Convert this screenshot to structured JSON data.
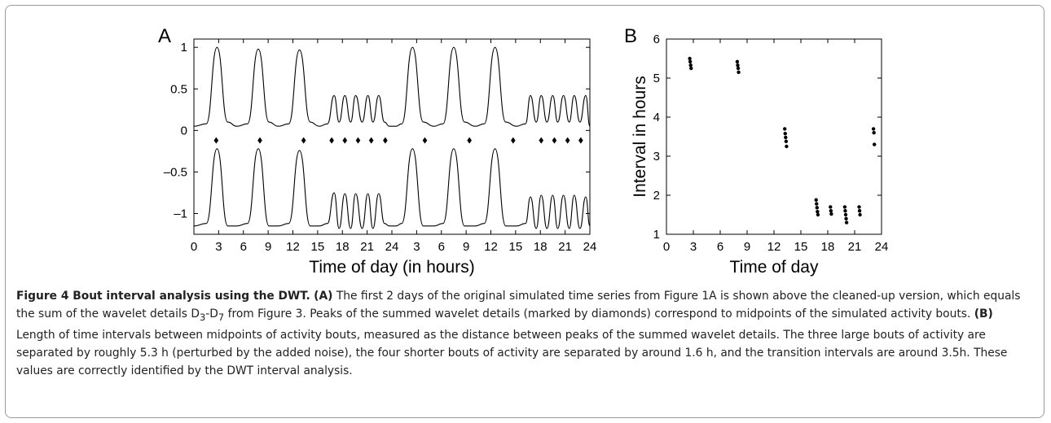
{
  "chart_data": [
    {
      "type": "line",
      "panel_label": "A",
      "xlabel": "Time of day (in hours)",
      "ylabel": "",
      "ylim": [
        -1.25,
        1.1
      ],
      "xlim": [
        0,
        48
      ],
      "x_tick_labels": [
        "0",
        "3",
        "6",
        "9",
        "12",
        "15",
        "18",
        "21",
        "24",
        "3",
        "6",
        "9",
        "12",
        "15",
        "18",
        "21",
        "24"
      ],
      "y_ticks": [
        1,
        0.5,
        0,
        -0.5,
        -1
      ],
      "y_tick_labels": [
        "1",
        "0.5",
        "0",
        "–0.5",
        "–1"
      ],
      "grid": false,
      "series": [
        {
          "role": "original simulated time series",
          "x": [
            0,
            1.5,
            2.8,
            4.1,
            5.2,
            6.5,
            7.8,
            9.1,
            10.2,
            11.5,
            12.8,
            14.1,
            15.2,
            16.2,
            17.0,
            17.6,
            18.3,
            19.0,
            19.6,
            20.4,
            21.1,
            21.7,
            22.4,
            23.1,
            23.7,
            24.5,
            25.2,
            26.5,
            27.8,
            29.1,
            30.2,
            31.5,
            32.8,
            34.1,
            35.2,
            36.5,
            37.8,
            39.1,
            40.2,
            40.8,
            41.5,
            42.1,
            42.8,
            43.5,
            44.1,
            44.8,
            45.5,
            46.1,
            46.8,
            47.5,
            48
          ],
          "y": [
            0.05,
            0.08,
            1.0,
            0.1,
            0.05,
            0.08,
            0.98,
            0.1,
            0.05,
            0.08,
            0.97,
            0.1,
            0.05,
            0.08,
            0.42,
            0.1,
            0.42,
            0.1,
            0.42,
            0.1,
            0.42,
            0.1,
            0.42,
            0.1,
            0.05,
            0.05,
            0.08,
            1.0,
            0.1,
            0.05,
            0.08,
            1.0,
            0.1,
            0.05,
            0.08,
            1.0,
            0.1,
            0.05,
            0.08,
            0.42,
            0.1,
            0.42,
            0.1,
            0.42,
            0.1,
            0.42,
            0.1,
            0.42,
            0.1,
            0.42,
            0.05
          ]
        },
        {
          "role": "sum of wavelet details D3-D7 (offset)",
          "x": [
            0,
            1.5,
            2.8,
            4.1,
            5.2,
            6.5,
            7.8,
            9.1,
            10.2,
            11.5,
            12.8,
            14.1,
            15.2,
            16.2,
            17.0,
            17.6,
            18.3,
            19.0,
            19.6,
            20.4,
            21.1,
            21.7,
            22.4,
            23.1,
            23.7,
            24.5,
            25.2,
            26.5,
            27.8,
            29.1,
            30.2,
            31.5,
            32.8,
            34.1,
            35.2,
            36.5,
            37.8,
            39.1,
            40.2,
            40.8,
            41.5,
            42.1,
            42.8,
            43.5,
            44.1,
            44.8,
            45.5,
            46.1,
            46.8,
            47.5,
            48
          ],
          "y": [
            -1.15,
            -1.12,
            -0.22,
            -1.15,
            -1.15,
            -1.12,
            -0.22,
            -1.15,
            -1.15,
            -1.12,
            -0.24,
            -1.15,
            -1.15,
            -1.12,
            -0.75,
            -1.18,
            -0.76,
            -1.18,
            -0.76,
            -1.18,
            -0.76,
            -1.18,
            -0.76,
            -1.12,
            -1.15,
            -1.15,
            -1.12,
            -0.22,
            -1.15,
            -1.15,
            -1.12,
            -0.22,
            -1.15,
            -1.15,
            -1.12,
            -0.22,
            -1.15,
            -1.15,
            -1.12,
            -0.8,
            -1.18,
            -0.78,
            -1.18,
            -0.78,
            -1.18,
            -0.78,
            -1.18,
            -0.78,
            -1.18,
            -0.8,
            -1.15
          ]
        },
        {
          "role": "peaks of summed wavelet details (diamonds)",
          "marker": "diamond",
          "y_level": -0.12,
          "x": [
            2.7,
            8.0,
            13.3,
            16.7,
            18.3,
            19.9,
            21.5,
            23.2,
            28.0,
            33.4,
            38.7,
            42.1,
            43.7,
            45.3,
            46.9,
            48.5
          ]
        }
      ]
    },
    {
      "type": "scatter",
      "panel_label": "B",
      "xlabel": "Time of day",
      "ylabel": "Interval in hours",
      "xlim": [
        0,
        24
      ],
      "ylim": [
        1,
        6
      ],
      "x_ticks": [
        0,
        3,
        6,
        9,
        12,
        15,
        18,
        21,
        24
      ],
      "y_ticks": [
        1,
        2,
        3,
        4,
        5,
        6
      ],
      "grid": false,
      "points": [
        [
          2.6,
          5.5
        ],
        [
          2.65,
          5.42
        ],
        [
          2.7,
          5.33
        ],
        [
          2.75,
          5.25
        ],
        [
          7.9,
          5.42
        ],
        [
          7.95,
          5.33
        ],
        [
          8.0,
          5.25
        ],
        [
          8.05,
          5.15
        ],
        [
          13.2,
          3.7
        ],
        [
          13.25,
          3.58
        ],
        [
          13.3,
          3.48
        ],
        [
          13.35,
          3.38
        ],
        [
          13.4,
          3.25
        ],
        [
          16.7,
          1.88
        ],
        [
          16.75,
          1.78
        ],
        [
          16.8,
          1.68
        ],
        [
          16.85,
          1.58
        ],
        [
          16.9,
          1.5
        ],
        [
          18.3,
          1.7
        ],
        [
          18.35,
          1.6
        ],
        [
          18.4,
          1.52
        ],
        [
          19.9,
          1.7
        ],
        [
          19.95,
          1.6
        ],
        [
          20.0,
          1.5
        ],
        [
          20.05,
          1.4
        ],
        [
          20.1,
          1.3
        ],
        [
          21.5,
          1.7
        ],
        [
          21.55,
          1.6
        ],
        [
          21.6,
          1.5
        ],
        [
          23.1,
          3.7
        ],
        [
          23.15,
          3.6
        ],
        [
          23.2,
          3.3
        ]
      ]
    }
  ],
  "caption": {
    "title": "Figure 4 Bout interval analysis using the DWT.",
    "a_tag": "(A)",
    "a_text_1": " The first 2 days of the original simulated time series from Figure 1A is shown above the cleaned-up version, which equals the sum of the wavelet details D",
    "a_sub_1": "3",
    "a_text_2": "-D",
    "a_sub_2": "7",
    "a_text_3": " from Figure 3. Peaks of the summed wavelet details (marked by diamonds) correspond to midpoints of the simulated activity bouts.",
    "b_tag": "(B)",
    "b_text": " Length of time intervals between midpoints of activity bouts, measured as the distance between peaks of the summed wavelet details. The three large bouts of activity are separated by roughly 5.3 h (perturbed by the added noise), the four shorter bouts of activity are separated by around 1.6 h, and the transition intervals are around 3.5h. These values are correctly identified by the DWT interval analysis."
  }
}
